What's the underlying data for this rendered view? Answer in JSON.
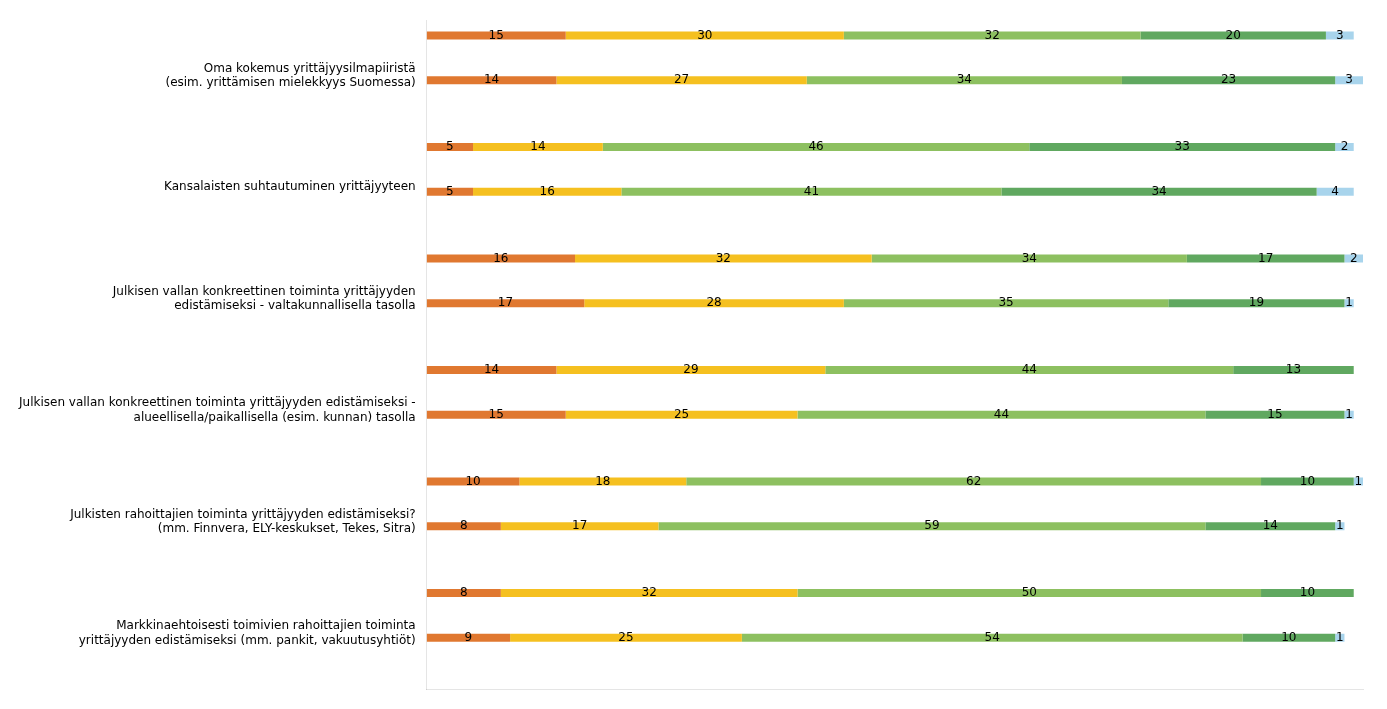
{
  "chart_data": {
    "type": "bar",
    "orientation": "horizontal",
    "stacked": true,
    "categories": [
      "Oma kokemus yrittäjyysilmapiiristä\n(esim. yrittämisen mielekkyys Suomessa)",
      "Kansalaisten suhtautuminen yrittäjyyteen",
      "Julkisen vallan konkreettinen toiminta yrittäjyyden\nedistämiseksi - valtakunnallisella tasolla",
      "Julkisen vallan konkreettinen toiminta yrittäjyyden edistämiseksi -\nalueellisella/paikallisella (esim. kunnan) tasolla",
      "Julkisten rahoittajien toiminta yrittäjyyden edistämiseksi?\n(mm. Finnvera, ELY-keskukset, Tekes, Sitra)",
      "Markkinaehtoisesti toimivien rahoittajien toiminta\nyrittäjyyden edistämiseksi (mm. pankit, vakuutusyhtiöt)"
    ],
    "series": [
      {
        "color": "#E07830",
        "values": [
          [
            15,
            14
          ],
          [
            5,
            5
          ],
          [
            16,
            17
          ],
          [
            14,
            15
          ],
          [
            10,
            8
          ],
          [
            8,
            9
          ]
        ]
      },
      {
        "color": "#F5C020",
        "values": [
          [
            30,
            27
          ],
          [
            14,
            16
          ],
          [
            32,
            28
          ],
          [
            29,
            25
          ],
          [
            18,
            17
          ],
          [
            32,
            25
          ]
        ]
      },
      {
        "color": "#8DC060",
        "values": [
          [
            32,
            34
          ],
          [
            46,
            41
          ],
          [
            34,
            35
          ],
          [
            44,
            44
          ],
          [
            62,
            59
          ],
          [
            50,
            54
          ]
        ]
      },
      {
        "color": "#60A860",
        "values": [
          [
            20,
            23
          ],
          [
            33,
            34
          ],
          [
            17,
            19
          ],
          [
            13,
            15
          ],
          [
            10,
            14
          ],
          [
            10,
            10
          ]
        ]
      },
      {
        "color": "#A8D4EC",
        "values": [
          [
            3,
            3
          ],
          [
            2,
            4
          ],
          [
            2,
            1
          ],
          [
            0,
            1
          ],
          [
            1,
            1
          ],
          [
            0,
            1
          ]
        ]
      }
    ],
    "xlim": [
      0,
      101
    ],
    "data_labels": true,
    "tick_labels": "y",
    "grid": false
  }
}
